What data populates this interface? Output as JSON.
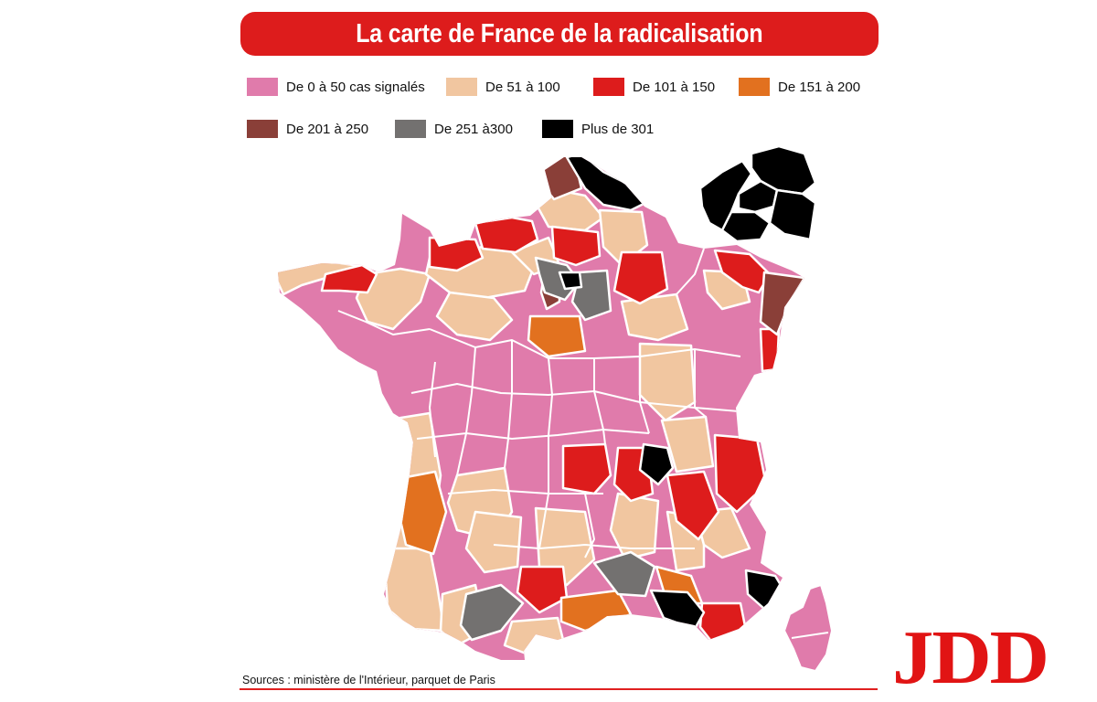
{
  "header": {
    "title": "La carte de France de la radicalisation"
  },
  "legend": {
    "items": [
      {
        "label": "De 0 à 50 cas signalés",
        "color": "#e07bab"
      },
      {
        "label": "De 51 à 100",
        "color": "#f1c6a0"
      },
      {
        "label": "De 101 à 150",
        "color": "#dd1c1c"
      },
      {
        "label": "De 151 à 200",
        "color": "#e2711f"
      },
      {
        "label": "De 201 à 250",
        "color": "#8a3f38"
      },
      {
        "label": "De 251 à300",
        "color": "#737170"
      },
      {
        "label": "Plus de 301",
        "color": "#000000"
      }
    ]
  },
  "map": {
    "colors": {
      "pink": "#e07bab",
      "beige": "#f1c6a0",
      "red": "#dd1c1c",
      "orange": "#e2711f",
      "brown": "#8a3f38",
      "gray": "#737170",
      "black": "#000000",
      "border": "#ffffff"
    }
  },
  "footer": {
    "sources": "Sources : ministère de l'Intérieur, parquet de Paris",
    "logo": "JDD"
  }
}
